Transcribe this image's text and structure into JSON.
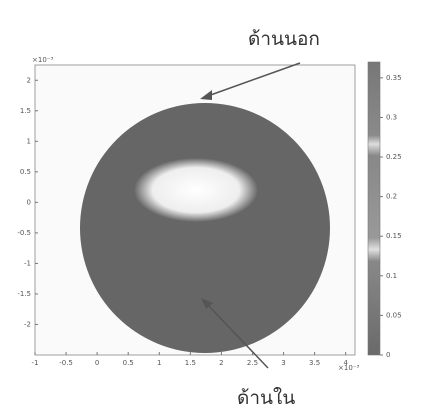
{
  "chart_data": {
    "type": "image",
    "xlim": [
      -1,
      4.15
    ],
    "xticks": [
      -1,
      -0.5,
      0,
      0.5,
      1,
      1.5,
      2,
      2.5,
      3,
      3.5,
      4
    ],
    "ylim": [
      -2.5,
      2.25
    ],
    "yticks": [
      -2,
      -1.5,
      -1,
      -0.5,
      0,
      0.5,
      1,
      1.5,
      2
    ],
    "x_multiplier": "×10⁻³",
    "y_multiplier": "×10⁻³",
    "clim": [
      0,
      0.37
    ],
    "cticks": [
      0,
      0.05,
      0.1,
      0.15,
      0.2,
      0.25,
      0.3,
      0.35
    ],
    "annotations": [
      "ด้านนอก",
      "ด้านใน"
    ]
  }
}
